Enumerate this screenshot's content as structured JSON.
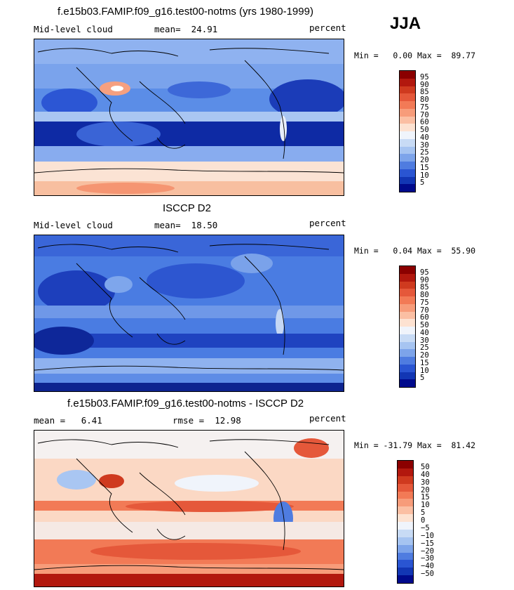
{
  "season": "JJA",
  "panels": [
    {
      "title": "f.e15b03.FAMIP.f09_g16.test00-notms (yrs 1980-1999)",
      "left_label": "Mid-level cloud",
      "center_label": "mean=  24.91",
      "right_label": "percent",
      "minmax": "Min =   0.00 Max =  89.77",
      "colorbar": {
        "labels": [
          "95",
          "90",
          "85",
          "80",
          "75",
          "70",
          "60",
          "50",
          "40",
          "30",
          "25",
          "20",
          "15",
          "10",
          "5"
        ],
        "colors": [
          "#8b0000",
          "#b2180e",
          "#cf3a1f",
          "#e5583a",
          "#f27a56",
          "#f79c7a",
          "#fbbfa3",
          "#fde2d1",
          "#f0f4fb",
          "#c8dbf5",
          "#a6c4f1",
          "#7da4ea",
          "#4f7ce0",
          "#2a55d2",
          "#1236b4",
          "#000a8c"
        ]
      }
    },
    {
      "title": "ISCCP D2",
      "left_label": "Mid-level cloud",
      "center_label": "mean=  18.50",
      "right_label": "percent",
      "minmax": "Min =   0.04 Max =  55.90",
      "colorbar": {
        "labels": [
          "95",
          "90",
          "85",
          "80",
          "75",
          "70",
          "60",
          "50",
          "40",
          "30",
          "25",
          "20",
          "15",
          "10",
          "5"
        ],
        "colors": [
          "#8b0000",
          "#b2180e",
          "#cf3a1f",
          "#e5583a",
          "#f27a56",
          "#f79c7a",
          "#fbbfa3",
          "#fde2d1",
          "#f0f4fb",
          "#c8dbf5",
          "#a6c4f1",
          "#7da4ea",
          "#4f7ce0",
          "#2a55d2",
          "#1236b4",
          "#000a8c"
        ]
      }
    },
    {
      "title": "f.e15b03.FAMIP.f09_g16.test00-notms - ISCCP D2",
      "left_label": "mean =   6.41",
      "center_label": "rmse =  12.98",
      "right_label": "percent",
      "minmax": "Min = -31.79 Max =  81.42",
      "colorbar": {
        "labels": [
          "50",
          "40",
          "30",
          "20",
          "15",
          "10",
          "5",
          "0",
          "−5",
          "−10",
          "−15",
          "−20",
          "−30",
          "−40",
          "−50"
        ],
        "colors": [
          "#8b0000",
          "#b2180e",
          "#cf3a1f",
          "#e5583a",
          "#f27a56",
          "#f79c7a",
          "#fbbfa3",
          "#fde2d1",
          "#f0f4fb",
          "#c8dbf5",
          "#a6c4f1",
          "#7da4ea",
          "#4f7ce0",
          "#2a55d2",
          "#1236b4",
          "#000a8c"
        ]
      }
    }
  ]
}
